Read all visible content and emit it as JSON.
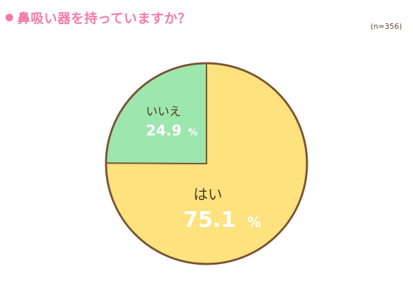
{
  "header": {
    "title": "鼻吸い器を持っていますか？",
    "sample_size": "(n=356)"
  },
  "colors": {
    "title": "#f47aa8",
    "bullet": "#f47aa8",
    "outline": "#7a5334",
    "text_dark": "#4a3a2a",
    "text_light": "#ffffff"
  },
  "chart_data": {
    "type": "pie",
    "title": "鼻吸い器を持っていますか？",
    "note": "(n=356)",
    "slices": [
      {
        "label": "はい",
        "value": 75.1,
        "display": "75.1",
        "unit": "%",
        "color": "#fde27d"
      },
      {
        "label": "いいえ",
        "value": 24.9,
        "display": "24.9",
        "unit": "%",
        "color": "#9de6ad"
      }
    ]
  }
}
